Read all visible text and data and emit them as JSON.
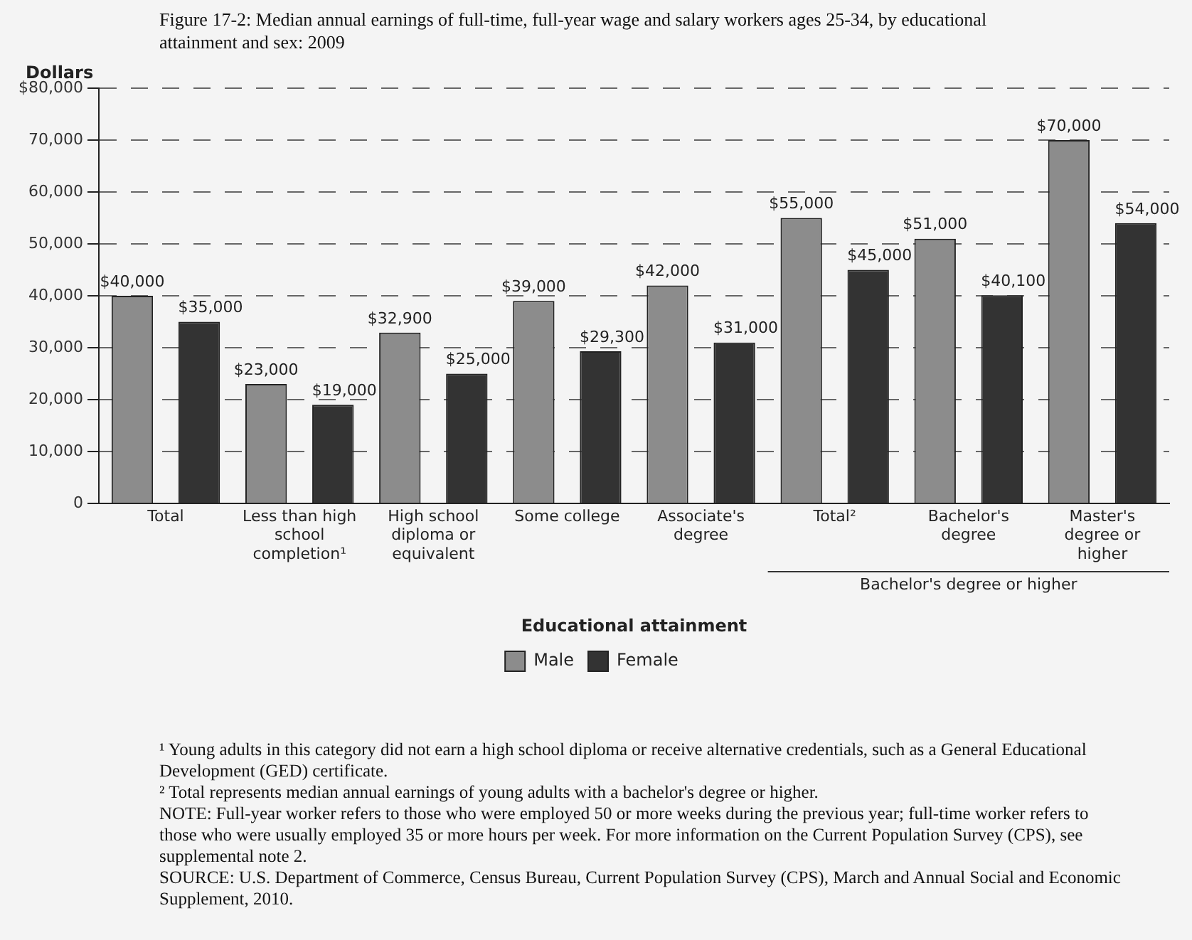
{
  "chart_data": {
    "type": "bar",
    "title": "Figure 17-2: Median annual earnings of full-time, full-year wage and salary workers ages 25-34, by educational attainment and sex: 2009",
    "ylabel": "Dollars",
    "xlabel": "Educational attainment",
    "categories": [
      "Total",
      "Less than high school completion¹",
      "High school diploma or equivalent",
      "Some college",
      "Associate's degree",
      "Total²",
      "Bachelor's degree",
      "Master's degree or higher"
    ],
    "series": [
      {
        "name": "Male",
        "color": "#8c8c8c",
        "values": [
          40000,
          23000,
          32900,
          39000,
          42000,
          55000,
          51000,
          70000
        ],
        "value_labels": [
          "$40,000",
          "$23,000",
          "$32,900",
          "$39,000",
          "$42,000",
          "$55,000",
          "$51,000",
          "$70,000"
        ]
      },
      {
        "name": "Female",
        "color": "#333333",
        "values": [
          35000,
          19000,
          25000,
          29300,
          31000,
          45000,
          40100,
          54000
        ],
        "value_labels": [
          "$35,000",
          "$19,000",
          "$25,000",
          "$29,300",
          "$31,000",
          "$45,000",
          "$40,100",
          "$54,000"
        ]
      }
    ],
    "ylim": [
      0,
      80000
    ],
    "yticks": [
      0,
      {
        "value": 10000,
        "label": "10,000"
      },
      {
        "value": 20000,
        "label": "20,000"
      },
      {
        "value": 30000,
        "label": "30,000"
      },
      {
        "value": 40000,
        "label": "40,000"
      },
      {
        "value": 50000,
        "label": "50,000"
      },
      {
        "value": 60000,
        "label": "60,000"
      },
      {
        "value": 70000,
        "label": "70,000"
      },
      {
        "value": 80000,
        "label": "$80,000"
      }
    ],
    "grid": "y",
    "legend": "bottom",
    "annotations": [
      "Bachelor's degree or higher",
      "¹ Young adults in this category did not earn a high school diploma or receive alternative credentials, such as a General Educational Development (GED) certificate.",
      "² Total represents median annual earnings of young adults with a bachelor's degree or higher.",
      "NOTE: Full-year worker refers to those who were employed 50 or more weeks during the previous year; full-time worker refers to those who were usually employed 35 or more hours per week. For more information on the Current Population Survey (CPS), see supplemental note 2.",
      "SOURCE: U.S. Department of Commerce, Census Bureau, Current Population Survey (CPS), March and Annual Social and Economic Supplement, 2010."
    ]
  }
}
